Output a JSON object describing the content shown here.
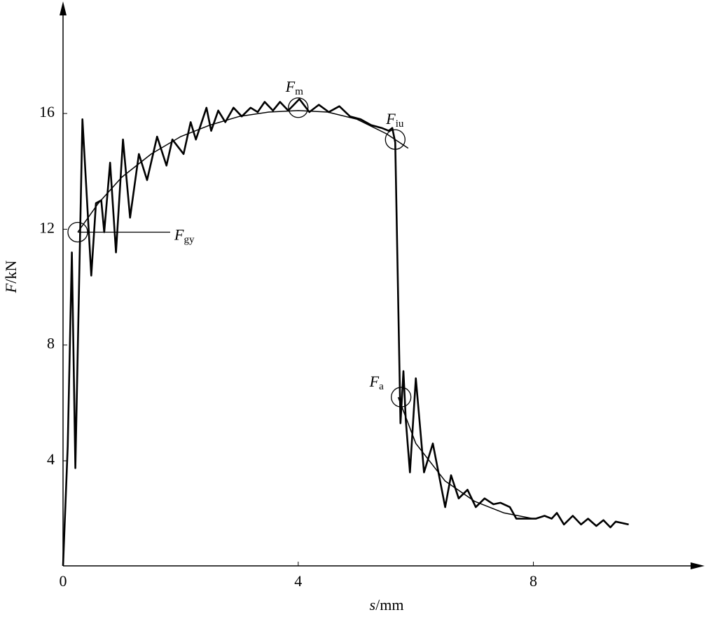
{
  "chart_data": {
    "type": "line",
    "x_label": "s/mm",
    "y_label": "F/kN",
    "xlim": [
      0,
      10.9
    ],
    "ylim": [
      0.37,
      19.8
    ],
    "xticks": [
      0,
      4,
      8
    ],
    "yticks": [
      4,
      8,
      12,
      16
    ],
    "grid": false,
    "series": [
      {
        "color": "#000000",
        "x": [
          0,
          0.08,
          0.15,
          0.21,
          0.33,
          0.48,
          0.56,
          0.65,
          0.7,
          0.8,
          0.9,
          1.02,
          1.14,
          1.29,
          1.43,
          1.6,
          1.76,
          1.86,
          2.05,
          2.17,
          2.26,
          2.44,
          2.52,
          2.64,
          2.76,
          2.9,
          3.04,
          3.19,
          3.31,
          3.43,
          3.57,
          3.69,
          3.83,
          4.02,
          4.19,
          4.35,
          4.52,
          4.7,
          4.88,
          5.06,
          5.24,
          5.42,
          5.54,
          5.6,
          5.65,
          5.74,
          5.79,
          5.83,
          5.9,
          6.0,
          6.14,
          6.29,
          6.5,
          6.6,
          6.73,
          6.88,
          7.02,
          7.17,
          7.32,
          7.44,
          7.6,
          7.71,
          7.88,
          8.04,
          8.19,
          8.31,
          8.4,
          8.52,
          8.67,
          8.81,
          8.93,
          9.07,
          9.19,
          9.31,
          9.4,
          9.62
        ],
        "values": [
          0.37,
          4.5,
          11.2,
          3.75,
          15.8,
          10.4,
          12.9,
          13.0,
          11.9,
          14.3,
          11.2,
          15.1,
          12.4,
          14.6,
          13.7,
          15.2,
          14.2,
          15.1,
          14.6,
          15.7,
          15.1,
          16.2,
          15.4,
          16.1,
          15.7,
          16.2,
          15.9,
          16.2,
          16.05,
          16.4,
          16.1,
          16.4,
          16.1,
          16.5,
          16.05,
          16.3,
          16.05,
          16.25,
          15.9,
          15.8,
          15.6,
          15.5,
          15.4,
          15.5,
          15.0,
          5.3,
          7.1,
          5.4,
          3.6,
          6.85,
          3.6,
          4.6,
          2.4,
          3.5,
          2.7,
          3.0,
          2.4,
          2.7,
          2.5,
          2.55,
          2.4,
          2.0,
          2.0,
          2.0,
          2.1,
          2.0,
          2.2,
          1.8,
          2.1,
          1.8,
          2.0,
          1.75,
          1.95,
          1.7,
          1.9,
          1.8
        ]
      },
      {
        "color": "#000000",
        "x": [
          0.25,
          0.6,
          1.0,
          1.5,
          2.0,
          2.5,
          3.0,
          3.5,
          4.0,
          4.5,
          5.0,
          5.5,
          5.87,
          5.87,
          5.7,
          6.0,
          6.5,
          7.0,
          7.5,
          8.0
        ],
        "values": [
          11.9,
          12.9,
          13.8,
          14.6,
          15.2,
          15.6,
          15.9,
          16.05,
          16.1,
          16.05,
          15.8,
          15.3,
          14.8,
          null,
          6.2,
          4.6,
          3.3,
          2.6,
          2.2,
          2.0
        ]
      }
    ],
    "annotations": [
      {
        "text": "F",
        "subscript": "gy",
        "x": 0.25,
        "y": 11.9
      },
      {
        "text": "F",
        "subscript": "m",
        "x": 4.0,
        "y": 16.2
      },
      {
        "text": "F",
        "subscript": "iu",
        "x": 5.65,
        "y": 15.1
      },
      {
        "text": "F",
        "subscript": "a",
        "x": 5.75,
        "y": 6.2
      }
    ]
  }
}
